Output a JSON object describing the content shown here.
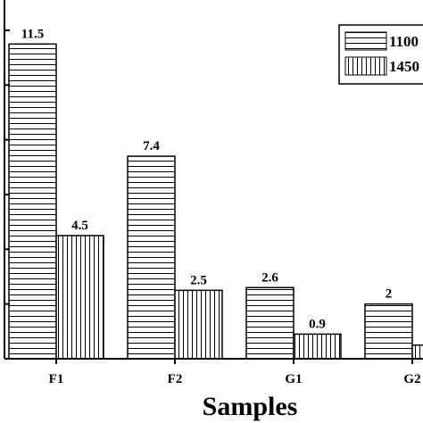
{
  "chart_data": {
    "type": "bar",
    "categories": [
      "F1",
      "F2",
      "G1",
      "G2"
    ],
    "series": [
      {
        "name": "1100",
        "values": [
          11.5,
          7.4,
          2.6,
          2.0
        ],
        "labels": [
          "11.5",
          "7.4",
          "2.6",
          "2"
        ],
        "pattern": "horizontal"
      },
      {
        "name": "1450",
        "values": [
          4.5,
          2.5,
          0.9,
          0.5
        ],
        "labels": [
          "4.5",
          "2.5",
          "0.9",
          ""
        ],
        "pattern": "vertical"
      }
    ],
    "title": "",
    "xlabel": "Samples",
    "ylabel": "",
    "ylim": [
      0,
      12
    ],
    "legend_position": "top-right",
    "grid": false,
    "colors": {
      "bar_fill": "#ffffff",
      "line": "#000000"
    }
  }
}
